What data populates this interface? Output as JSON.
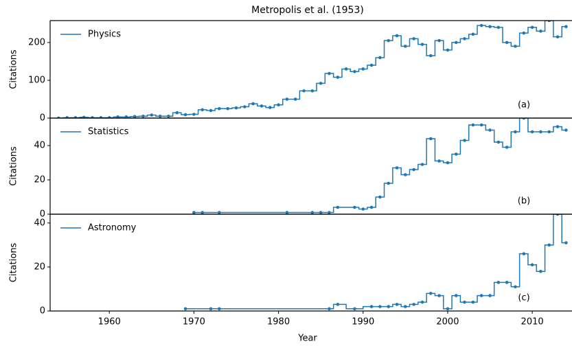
{
  "chart_data": [
    {
      "type": "line",
      "title": "Metropolis et al. (1953)",
      "ylabel": "Citations",
      "annotation": "(a)",
      "xlim": [
        1953,
        2014.7
      ],
      "ylim": [
        0,
        258
      ],
      "yticks": [
        0,
        100,
        200
      ],
      "series": [
        {
          "name": "Physics",
          "color": "#1f77b4",
          "x": [
            1954,
            1955,
            1956,
            1957,
            1958,
            1959,
            1960,
            1961,
            1962,
            1963,
            1964,
            1965,
            1966,
            1967,
            1968,
            1969,
            1970,
            1971,
            1972,
            1973,
            1974,
            1975,
            1976,
            1977,
            1978,
            1979,
            1980,
            1981,
            1982,
            1983,
            1984,
            1985,
            1986,
            1987,
            1988,
            1989,
            1990,
            1991,
            1992,
            1993,
            1994,
            1995,
            1996,
            1997,
            1998,
            1999,
            2000,
            2001,
            2002,
            2003,
            2004,
            2005,
            2006,
            2007,
            2008,
            2009,
            2010,
            2011,
            2012,
            2013,
            2014
          ],
          "values": [
            0,
            1,
            1,
            2,
            1,
            1,
            1,
            3,
            3,
            4,
            5,
            8,
            5,
            5,
            14,
            9,
            10,
            22,
            20,
            25,
            25,
            27,
            30,
            38,
            32,
            28,
            35,
            50,
            50,
            72,
            72,
            92,
            118,
            108,
            130,
            123,
            130,
            140,
            160,
            205,
            218,
            190,
            210,
            195,
            165,
            205,
            180,
            200,
            210,
            222,
            245,
            242,
            240,
            200,
            190,
            225,
            240,
            230,
            258,
            215,
            242
          ]
        }
      ]
    },
    {
      "type": "line",
      "ylabel": "Citations",
      "annotation": "(b)",
      "xlim": [
        1953,
        2014.7
      ],
      "ylim": [
        0,
        56
      ],
      "yticks": [
        0,
        20,
        40
      ],
      "series": [
        {
          "name": "Statistics",
          "color": "#1f77b4",
          "x": [
            1970,
            1971,
            1973,
            1981,
            1984,
            1985,
            1986,
            1987,
            1989,
            1990,
            1991,
            1992,
            1993,
            1994,
            1995,
            1996,
            1997,
            1998,
            1999,
            2000,
            2001,
            2002,
            2003,
            2004,
            2005,
            2006,
            2007,
            2008,
            2009,
            2010,
            2011,
            2012,
            2013,
            2014
          ],
          "values": [
            1,
            1,
            1,
            1,
            1,
            1,
            1,
            4,
            4,
            3,
            4,
            10,
            18,
            27,
            23,
            26,
            29,
            44,
            31,
            30,
            35,
            43,
            52,
            52,
            49,
            42,
            39,
            48,
            56,
            48,
            48,
            48,
            51,
            49
          ]
        }
      ]
    },
    {
      "type": "line",
      "ylabel": "Citations",
      "annotation": "(c)",
      "xlabel": "Year",
      "xlim": [
        1953,
        2014.7
      ],
      "ylim": [
        0,
        44
      ],
      "yticks": [
        0,
        20,
        40
      ],
      "xticks": [
        1960,
        1970,
        1980,
        1990,
        2000,
        2010
      ],
      "series": [
        {
          "name": "Astronomy",
          "color": "#1f77b4",
          "x": [
            1969,
            1972,
            1973,
            1986,
            1987,
            1989,
            1991,
            1992,
            1993,
            1994,
            1995,
            1996,
            1997,
            1998,
            1999,
            2000,
            2001,
            2002,
            2003,
            2004,
            2005,
            2006,
            2007,
            2008,
            2009,
            2010,
            2011,
            2012,
            2013,
            2014
          ],
          "values": [
            1,
            1,
            1,
            1,
            3,
            1,
            2,
            2,
            2,
            3,
            2,
            3,
            4,
            8,
            7,
            1,
            7,
            4,
            4,
            7,
            7,
            13,
            13,
            11,
            26,
            21,
            18,
            30,
            44,
            31
          ]
        }
      ]
    }
  ]
}
